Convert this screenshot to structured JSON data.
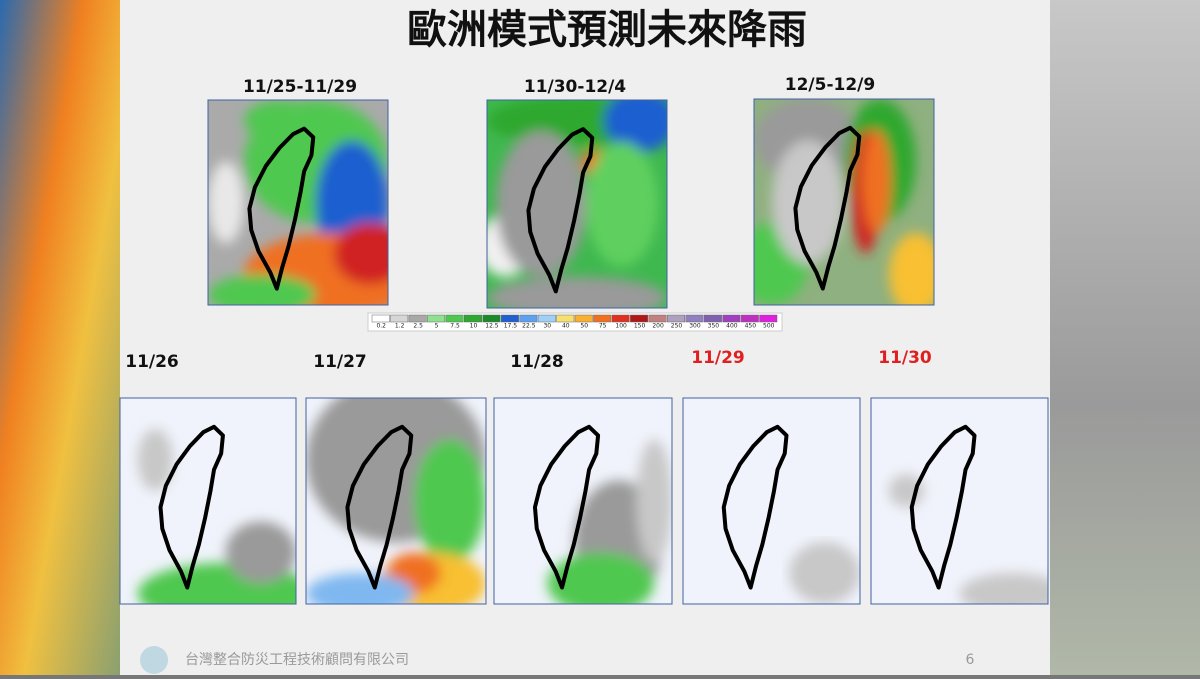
{
  "title": "歐洲模式預測未來降雨",
  "periods": [
    "11/25-11/29",
    "11/30-12/4",
    "12/5-12/9"
  ],
  "scale": {
    "labels": [
      0.2,
      1.2,
      2.5,
      5,
      7.5,
      10,
      12.5,
      17.5,
      22.5,
      30,
      40,
      50,
      75,
      100,
      150,
      200,
      250,
      300,
      350,
      400,
      450,
      500
    ],
    "colors": [
      "#ffffff",
      "#d6d6d6",
      "#a8a8a8",
      "#8fe08f",
      "#4fc84f",
      "#2fa82f",
      "#1a8a2a",
      "#1f5fd0",
      "#5fa0f0",
      "#9fd0f8",
      "#f8e070",
      "#f8b030",
      "#f07020",
      "#e03020",
      "#b01818",
      "#c08080",
      "#b0a0c0",
      "#9080c0",
      "#8060b0",
      "#a040c0",
      "#c030c0",
      "#e020e0"
    ]
  },
  "days": [
    {
      "label": "11/26",
      "color": "#111111"
    },
    {
      "label": "11/27",
      "color": "#111111"
    },
    {
      "label": "11/28",
      "color": "#111111"
    },
    {
      "label": "11/29",
      "color": "#e02020"
    },
    {
      "label": "11/30",
      "color": "#e02020"
    }
  ],
  "footer": {
    "company": "台灣整合防災工程技術顧問有限公司",
    "page": "6"
  }
}
